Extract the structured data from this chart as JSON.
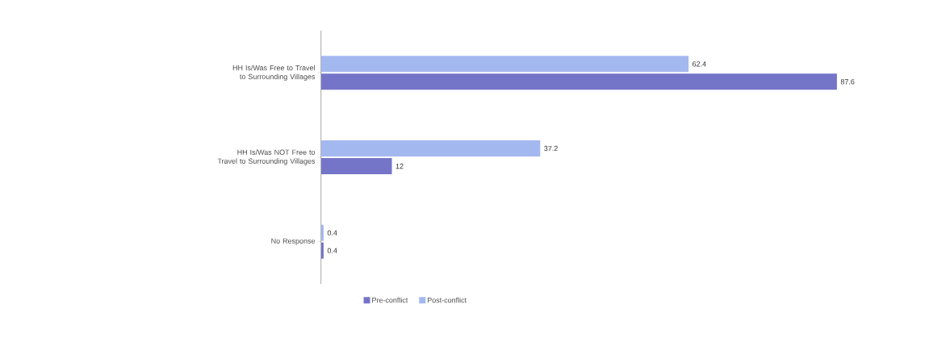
{
  "chart_data": {
    "type": "bar",
    "orientation": "horizontal",
    "categories": [
      "HH Is/Was Free to Travel to Surrounding Villages",
      "HH Is/Was NOT Free to Travel to Surrounding Villages",
      "No Response"
    ],
    "series": [
      {
        "name": "Pre-conflict",
        "color": "#7474c8",
        "values": [
          87.6,
          12,
          0.4
        ]
      },
      {
        "name": "Post-conflict",
        "color": "#a4b8f0",
        "values": [
          62.4,
          37.2,
          0.4
        ]
      }
    ],
    "data_labels": true,
    "legend": "bottom"
  }
}
